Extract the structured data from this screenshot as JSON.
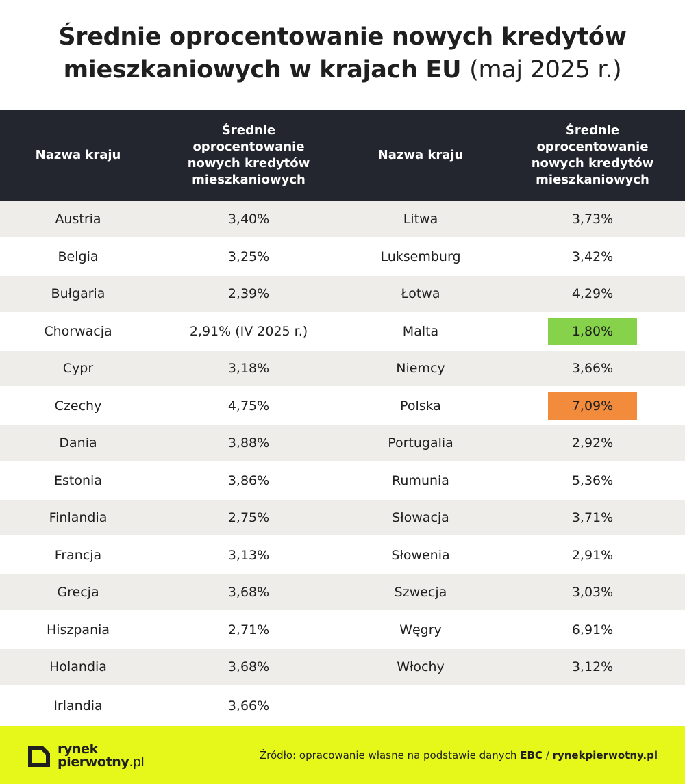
{
  "title": {
    "line1": "Średnie oprocentowanie nowych kredytów",
    "line2_bold": "mieszkaniowych w krajach EU",
    "line2_light": "(maj 2025 r.)"
  },
  "chart_data": {
    "type": "table",
    "columns": [
      "Nazwa kraju",
      "Średnie oprocentowanie nowych kredytów mieszkaniowych",
      "Nazwa kraju",
      "Średnie oprocentowanie nowych kredytów mieszkaniowych"
    ],
    "rows": [
      [
        "Austria",
        "3,40%",
        "Litwa",
        "3,73%"
      ],
      [
        "Belgia",
        "3,25%",
        "Luksemburg",
        "3,42%"
      ],
      [
        "Bułgaria",
        "2,39%",
        "Łotwa",
        "4,29%"
      ],
      [
        "Chorwacja",
        "2,91% (IV 2025 r.)",
        "Malta",
        "1,80%"
      ],
      [
        "Cypr",
        "3,18%",
        "Niemcy",
        "3,66%"
      ],
      [
        "Czechy",
        "4,75%",
        "Polska",
        "7,09%"
      ],
      [
        "Dania",
        "3,88%",
        "Portugalia",
        "2,92%"
      ],
      [
        "Estonia",
        "3,86%",
        "Rumunia",
        "5,36%"
      ],
      [
        "Finlandia",
        "2,75%",
        "Słowacja",
        "3,71%"
      ],
      [
        "Francja",
        "3,13%",
        "Słowenia",
        "2,91%"
      ],
      [
        "Grecja",
        "3,68%",
        "Szwecja",
        "3,03%"
      ],
      [
        "Hiszpania",
        "2,71%",
        "Węgry",
        "6,91%"
      ],
      [
        "Holandia",
        "3,68%",
        "Włochy",
        "3,12%"
      ],
      [
        "Irlandia",
        "3,66%",
        "",
        ""
      ]
    ],
    "highlights": [
      {
        "row": 3,
        "col": 3,
        "color": "#86d24a",
        "meaning": "lowest"
      },
      {
        "row": 5,
        "col": 3,
        "color": "#f28c3c",
        "meaning": "highest"
      }
    ]
  },
  "colors": {
    "header_bg": "#24262f",
    "row_shade": "#efede9",
    "footer_bg": "#e6f81a",
    "low_highlight": "#86d24a",
    "high_highlight": "#f28c3c"
  },
  "footer": {
    "logo_line1": "rynek",
    "logo_line2": "pierwotny",
    "logo_suffix": ".pl",
    "source_prefix": "Źródło: opracowanie własne na podstawie danych",
    "source_org": "EBC",
    "source_sep": "/",
    "source_site": "rynekpierwotny.pl"
  }
}
